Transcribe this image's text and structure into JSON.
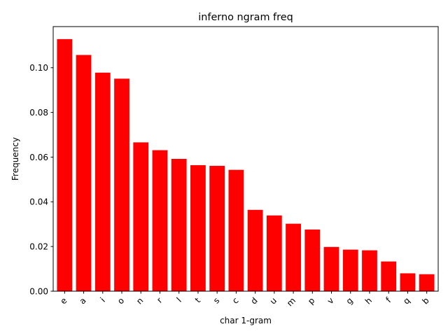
{
  "chart_data": {
    "type": "bar",
    "title": "inferno ngram freq",
    "xlabel": "char 1-gram",
    "ylabel": "Frequency",
    "categories": [
      "e",
      "a",
      "i",
      "o",
      "n",
      "r",
      "l",
      "t",
      "s",
      "c",
      "d",
      "u",
      "m",
      "p",
      "v",
      "g",
      "h",
      "f",
      "q",
      "b"
    ],
    "values": [
      0.1128,
      0.1057,
      0.0978,
      0.0951,
      0.0666,
      0.0631,
      0.0592,
      0.0564,
      0.0561,
      0.0543,
      0.0364,
      0.0339,
      0.0302,
      0.0276,
      0.0198,
      0.0186,
      0.0183,
      0.0133,
      0.008,
      0.0076
    ],
    "ylim": [
      0,
      0.1184
    ],
    "yticks": [
      0.0,
      0.02,
      0.04,
      0.06,
      0.08,
      0.1
    ],
    "ytick_labels": [
      "0.00",
      "0.02",
      "0.04",
      "0.06",
      "0.08",
      "0.10"
    ],
    "bar_color": "#ff0000",
    "grid": false,
    "legend": "none"
  }
}
